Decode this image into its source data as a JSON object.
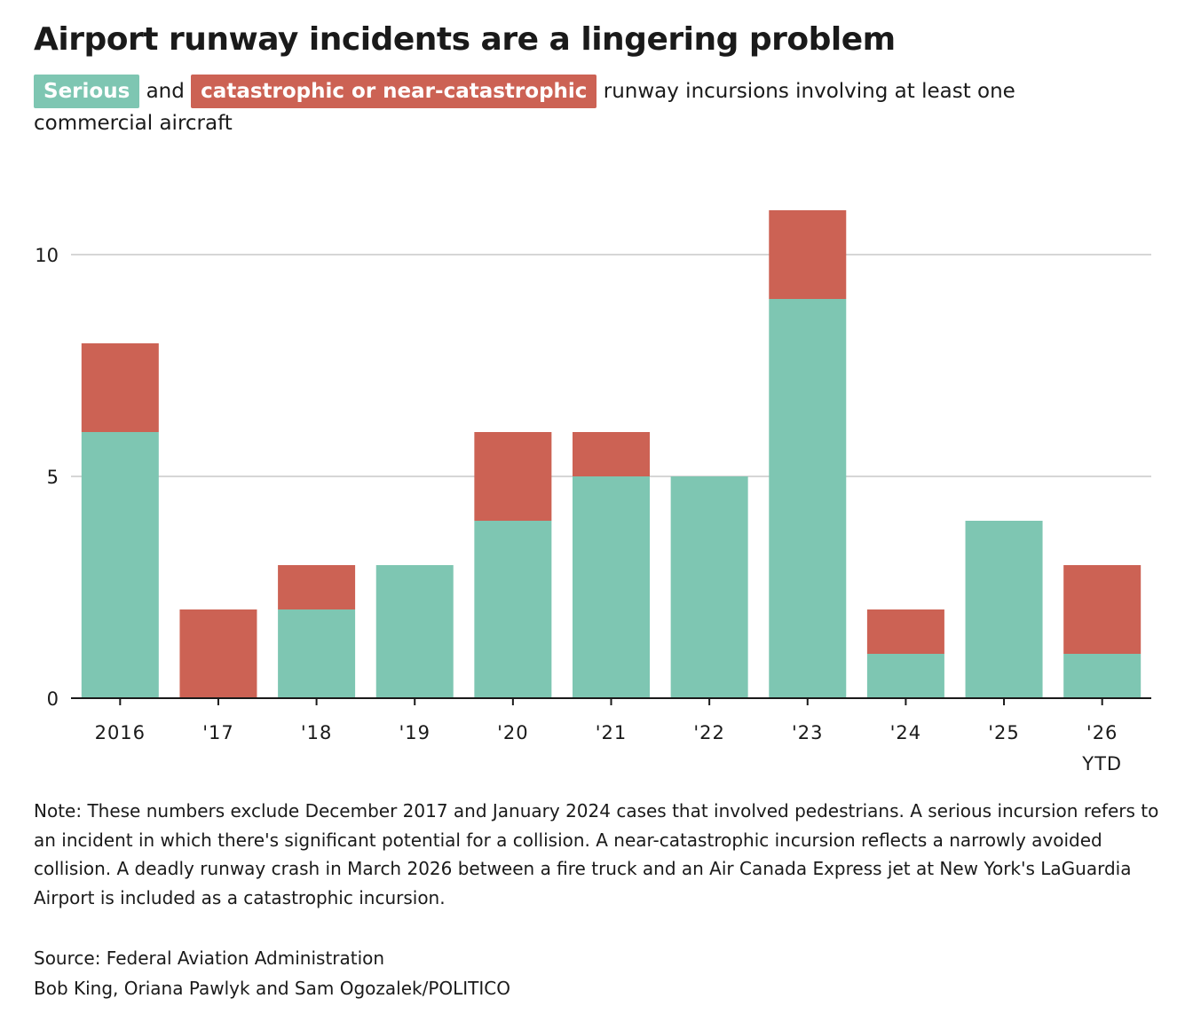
{
  "title": "Airport runway incidents are a lingering problem",
  "subtitle": {
    "serious_label": "Serious",
    "and": "and",
    "catastrophic_label": "catastrophic or near-catastrophic",
    "rest": "runway incursions involving at least one commercial aircraft"
  },
  "colors": {
    "serious": "#7ec6b2",
    "catastrophic": "#cc6254",
    "gridline": "#c8c8c8",
    "axis": "#1a1a1a"
  },
  "chart_data": {
    "type": "bar",
    "stacked": true,
    "categories": [
      "2016",
      "'17",
      "'18",
      "'19",
      "'20",
      "'21",
      "'22",
      "'23",
      "'24",
      "'25",
      "'26"
    ],
    "category_sublabels": [
      "",
      "",
      "",
      "",
      "",
      "",
      "",
      "",
      "",
      "",
      "YTD"
    ],
    "series": [
      {
        "name": "Serious",
        "values": [
          6,
          0,
          2,
          3,
          4,
          5,
          5,
          9,
          1,
          4,
          1
        ]
      },
      {
        "name": "catastrophic or near-catastrophic",
        "values": [
          2,
          2,
          1,
          0,
          2,
          1,
          0,
          2,
          1,
          0,
          2
        ]
      }
    ],
    "ylim": [
      0,
      12
    ],
    "yticks": [
      0,
      5,
      10
    ],
    "grid": true,
    "legend": "inline in subtitle"
  },
  "note": "Note: These numbers exclude December 2017 and January 2024 cases that involved pedestrians. A serious incursion refers to an incident in which there's significant potential for a collision. A near-catastrophic incursion reflects a narrowly avoided collision. A deadly runway crash in March 2026 between a fire truck and an Air Canada Express jet at New York's LaGuardia Airport is included as a catastrophic incursion.",
  "source": "Source: Federal Aviation Administration",
  "credit": "Bob King, Oriana Pawlyk and Sam Ogozalek/POLITICO"
}
